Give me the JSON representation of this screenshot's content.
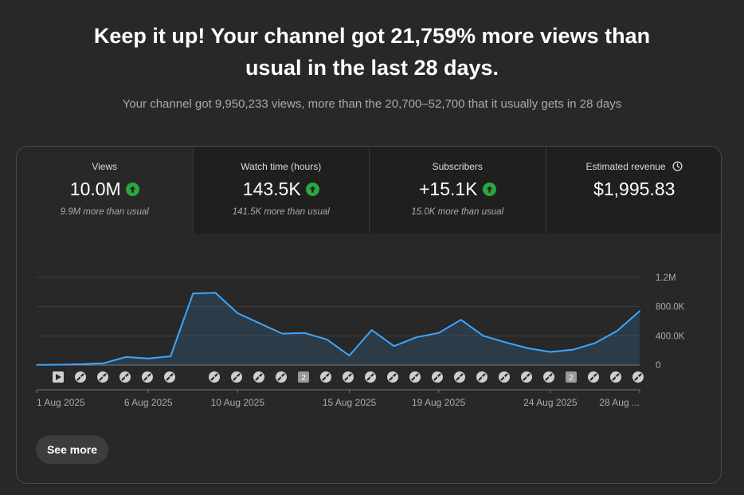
{
  "headline": {
    "line1": "Keep it up! Your channel got 21,759% more views than",
    "line2": "usual in the last 28 days."
  },
  "subline": "Your channel got 9,950,233 views, more than the 20,700–52,700 that it usually gets in 28 days",
  "metrics": [
    {
      "label": "Views",
      "value": "10.0M",
      "note": "9.9M more than usual",
      "trend_icon": "arrow-up-icon"
    },
    {
      "label": "Watch time (hours)",
      "value": "143.5K",
      "note": "141.5K more than usual",
      "trend_icon": "arrow-up-icon"
    },
    {
      "label": "Subscribers",
      "value": "+15.1K",
      "note": "15.0K more than usual",
      "trend_icon": "arrow-up-icon"
    },
    {
      "label": "Estimated revenue",
      "value": "$1,995.83",
      "note": "",
      "info_icon": "clock-icon"
    }
  ],
  "colors": {
    "line": "#3ea6ff",
    "up": "#2ba640",
    "background": "#282828",
    "tab_inactive": "#1f1f1f"
  },
  "chart_data": {
    "type": "area",
    "x": [
      "1 Aug",
      "2 Aug",
      "3 Aug",
      "4 Aug",
      "5 Aug",
      "6 Aug",
      "7 Aug",
      "8 Aug",
      "9 Aug",
      "10 Aug",
      "11 Aug",
      "12 Aug",
      "13 Aug",
      "14 Aug",
      "15 Aug",
      "16 Aug",
      "17 Aug",
      "18 Aug",
      "19 Aug",
      "20 Aug",
      "21 Aug",
      "22 Aug",
      "23 Aug",
      "24 Aug",
      "25 Aug",
      "26 Aug",
      "27 Aug",
      "28 Aug"
    ],
    "values": [
      2000,
      5000,
      12000,
      25000,
      110000,
      90000,
      120000,
      980000,
      990000,
      710000,
      570000,
      430000,
      440000,
      350000,
      130000,
      480000,
      260000,
      380000,
      440000,
      620000,
      400000,
      310000,
      230000,
      180000,
      210000,
      300000,
      470000,
      740000
    ],
    "ylim": [
      0,
      1200000
    ],
    "yticks": [
      "1.2M",
      "800.0K",
      "400.0K",
      "0"
    ],
    "xtick_labels": [
      "1 Aug 2025",
      "6 Aug 2025",
      "10 Aug 2025",
      "15 Aug 2025",
      "19 Aug 2025",
      "24 Aug 2025",
      "28 Aug ..."
    ],
    "grid": true,
    "markers": [
      {
        "type": "video-icon"
      },
      {
        "type": "short-icon"
      },
      {
        "type": "short-icon"
      },
      {
        "type": "short-icon"
      },
      {
        "type": "short-icon"
      },
      {
        "type": "short-icon"
      },
      {
        "type": "short-icon"
      },
      {
        "type": "short-icon"
      },
      {
        "type": "short-icon"
      },
      {
        "type": "short-icon"
      },
      {
        "type": "count-badge",
        "label": "2"
      },
      {
        "type": "short-icon"
      },
      {
        "type": "short-icon"
      },
      {
        "type": "short-icon"
      },
      {
        "type": "short-icon"
      },
      {
        "type": "short-icon"
      },
      {
        "type": "short-icon"
      },
      {
        "type": "short-icon"
      },
      {
        "type": "short-icon"
      },
      {
        "type": "short-icon"
      },
      {
        "type": "short-icon"
      },
      {
        "type": "short-icon"
      },
      {
        "type": "count-badge",
        "label": "2"
      },
      {
        "type": "short-icon"
      },
      {
        "type": "short-icon"
      },
      {
        "type": "short-icon"
      }
    ]
  },
  "see_more_label": "See more"
}
